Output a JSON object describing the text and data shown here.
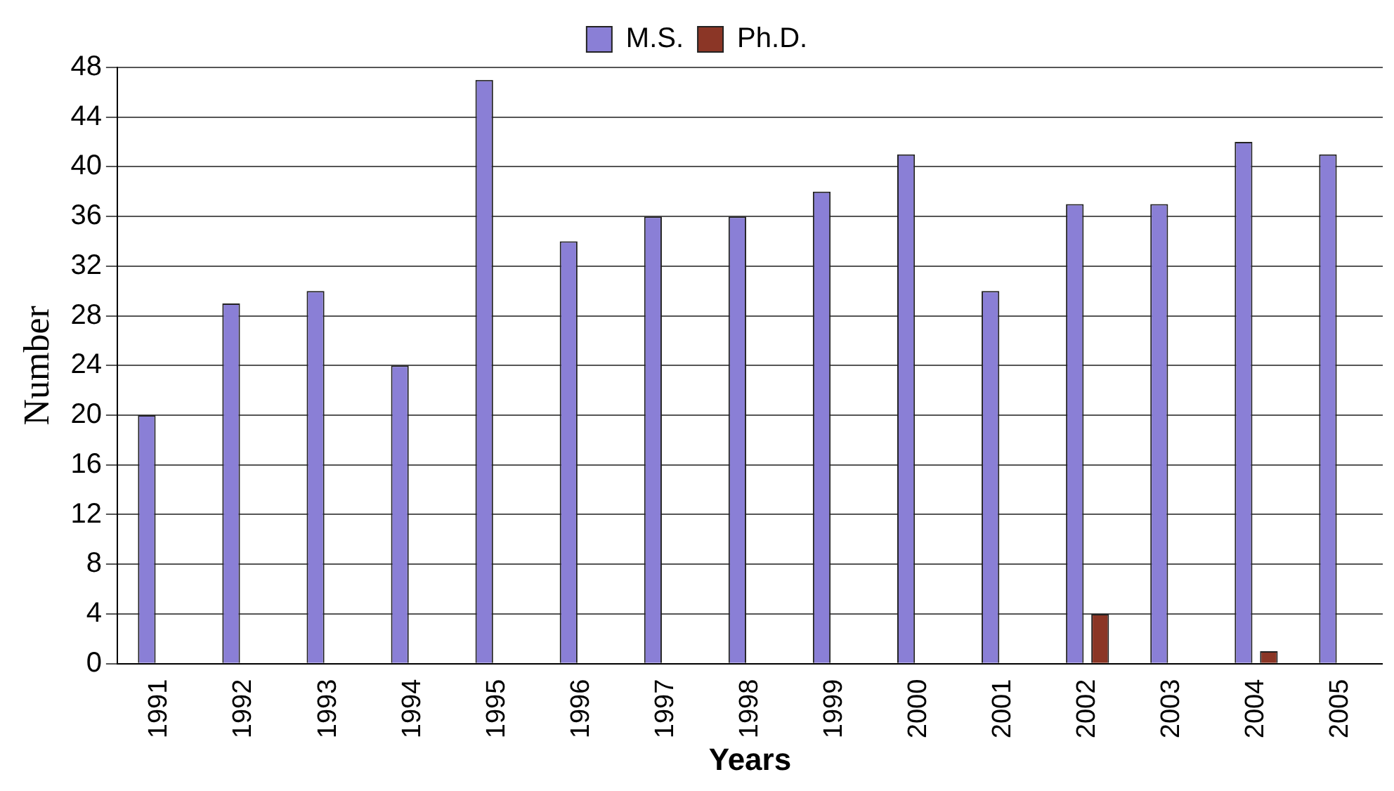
{
  "chart_data": {
    "type": "bar",
    "xlabel": "Years",
    "ylabel": "Number",
    "categories": [
      "1991",
      "1992",
      "1993",
      "1994",
      "1995",
      "1996",
      "1997",
      "1998",
      "1999",
      "2000",
      "2001",
      "2002",
      "2003",
      "2004",
      "2005"
    ],
    "series": [
      {
        "name": "M.S.",
        "color": "#8a7fd6",
        "values": [
          20,
          29,
          30,
          24,
          47,
          34,
          36,
          36,
          38,
          41,
          30,
          37,
          37,
          42,
          41
        ]
      },
      {
        "name": "Ph.D.",
        "color": "#8b3626",
        "values": [
          0,
          0,
          0,
          0,
          0,
          0,
          0,
          0,
          0,
          0,
          0,
          4,
          0,
          1,
          0
        ]
      }
    ],
    "ylim": [
      0,
      48
    ],
    "yticks": [
      0,
      4,
      8,
      12,
      16,
      20,
      24,
      28,
      32,
      36,
      40,
      44,
      48
    ],
    "grid": "y",
    "legend": "top"
  }
}
